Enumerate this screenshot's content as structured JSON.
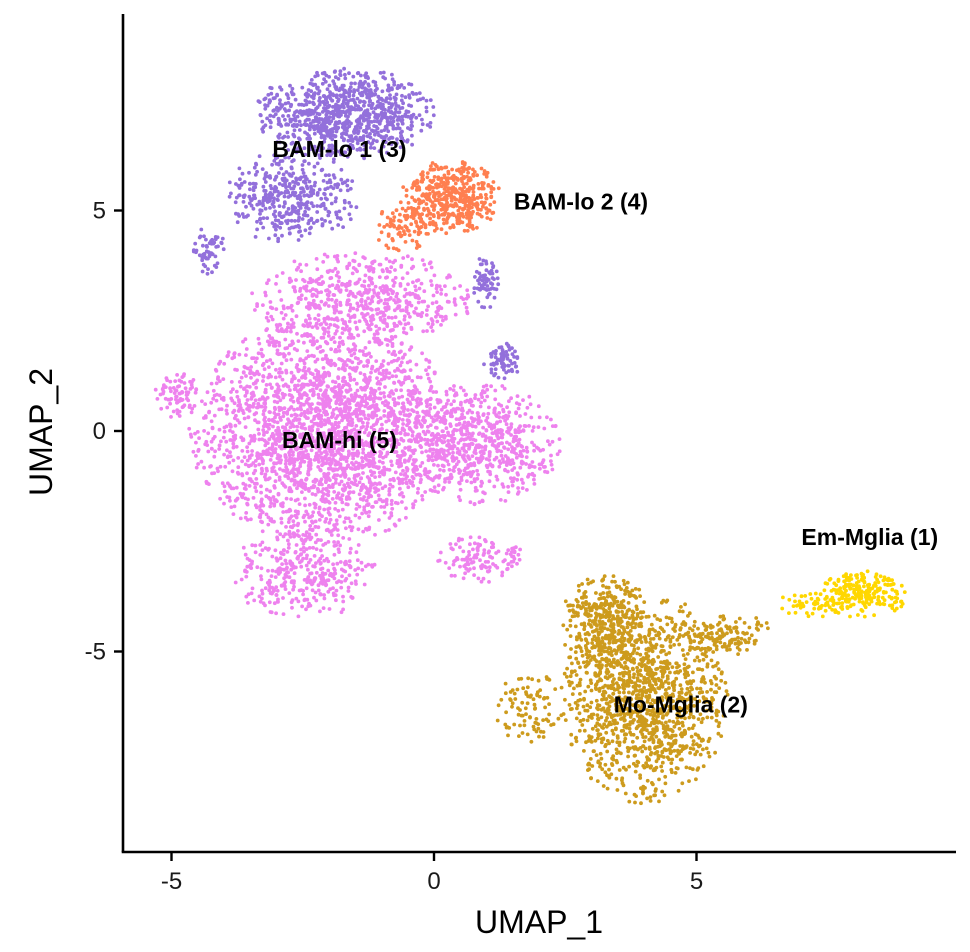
{
  "chart_data": {
    "type": "scatter",
    "title": "",
    "xlabel": "UMAP_1",
    "ylabel": "UMAP_2",
    "xlim": [
      -6,
      10
    ],
    "ylim": [
      -9.5,
      9.5
    ],
    "xticks": [
      -5,
      0,
      5
    ],
    "yticks": [
      -5,
      0,
      5
    ],
    "tick_labels": {
      "x": [
        "-5",
        "0",
        "5"
      ],
      "y": [
        "-5",
        "0",
        "5"
      ]
    },
    "grid": false,
    "legend": "none",
    "series": [
      {
        "name": "Em-Mglia (1)",
        "color": "#FFD700",
        "label_at": [
          8.3,
          -2.4
        ],
        "blobs": [
          {
            "cx": 8.2,
            "cy": -3.7,
            "rx": 0.8,
            "ry": 0.5,
            "n": 220
          },
          {
            "cx": 7.2,
            "cy": -3.9,
            "rx": 0.7,
            "ry": 0.3,
            "n": 60
          }
        ]
      },
      {
        "name": "Mo-Mglia (2)",
        "color": "#CD9B1D",
        "label_at": [
          4.7,
          -6.2
        ],
        "blobs": [
          {
            "cx": 4.0,
            "cy": -6.0,
            "rx": 1.5,
            "ry": 2.3,
            "n": 1350
          },
          {
            "cx": 3.2,
            "cy": -4.3,
            "rx": 0.8,
            "ry": 1.0,
            "n": 300
          },
          {
            "cx": 5.6,
            "cy": -4.6,
            "rx": 0.8,
            "ry": 0.45,
            "n": 120
          },
          {
            "cx": 1.8,
            "cy": -6.3,
            "rx": 0.6,
            "ry": 0.8,
            "n": 90
          }
        ]
      },
      {
        "name": "BAM-lo 1 (3)",
        "color": "#9370DB",
        "label_at": [
          -1.8,
          6.4
        ],
        "blobs": [
          {
            "cx": -1.7,
            "cy": 7.2,
            "rx": 1.6,
            "ry": 1.0,
            "n": 850
          },
          {
            "cx": -2.7,
            "cy": 5.3,
            "rx": 1.2,
            "ry": 1.0,
            "n": 400
          },
          {
            "cx": -4.3,
            "cy": 4.1,
            "rx": 0.3,
            "ry": 0.5,
            "n": 60
          },
          {
            "cx": 1.0,
            "cy": 3.4,
            "rx": 0.25,
            "ry": 0.6,
            "n": 70
          },
          {
            "cx": 1.3,
            "cy": 1.6,
            "rx": 0.35,
            "ry": 0.4,
            "n": 70
          }
        ]
      },
      {
        "name": "BAM-lo 2 (4)",
        "color": "#FF7F50",
        "label_at": [
          2.8,
          5.2
        ],
        "blobs": [
          {
            "cx": 0.3,
            "cy": 5.3,
            "rx": 0.9,
            "ry": 0.8,
            "n": 450
          },
          {
            "cx": -0.6,
            "cy": 4.6,
            "rx": 0.5,
            "ry": 0.5,
            "n": 80
          }
        ]
      },
      {
        "name": "BAM-hi (5)",
        "color": "#EE82EE",
        "label_at": [
          -1.8,
          -0.2
        ],
        "blobs": [
          {
            "cx": -2.1,
            "cy": 0.0,
            "rx": 2.4,
            "ry": 2.4,
            "n": 2400
          },
          {
            "cx": 0.8,
            "cy": -0.3,
            "rx": 1.5,
            "ry": 1.3,
            "n": 700
          },
          {
            "cx": -1.4,
            "cy": 3.0,
            "rx": 2.0,
            "ry": 1.0,
            "n": 600
          },
          {
            "cx": -2.5,
            "cy": -3.2,
            "rx": 1.3,
            "ry": 1.0,
            "n": 350
          },
          {
            "cx": 0.9,
            "cy": -2.9,
            "rx": 0.8,
            "ry": 0.5,
            "n": 120
          },
          {
            "cx": -4.9,
            "cy": 0.8,
            "rx": 0.4,
            "ry": 0.5,
            "n": 80
          }
        ]
      }
    ]
  }
}
